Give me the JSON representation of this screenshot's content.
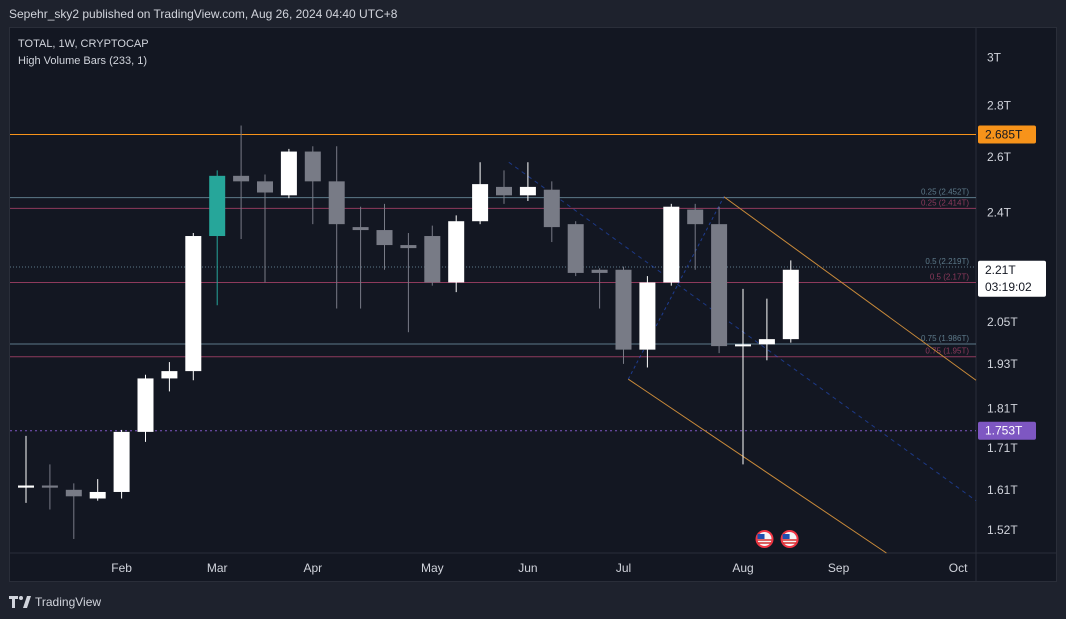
{
  "header": {
    "publisher_text": "Sepehr_sky2 published on TradingView.com, Aug 26, 2024 04:40 UTC+8"
  },
  "legend": {
    "symbol_line": "TOTAL, 1W, CRYPTOCAP",
    "indicator_line": "High Volume Bars (233, 1)"
  },
  "footer": {
    "brand": "TradingView"
  },
  "colors": {
    "background": "#131722",
    "bull_candle": "#ffffff",
    "bear_candle": "#787b86",
    "high_volume_candle": "#26a69a",
    "resistance_line": "#f7931a",
    "support_line": "#7e57c2",
    "fib_line": "#5d7a8a",
    "fib_line_alt": "#8e3a5c",
    "channel_line": "#c98a3a"
  },
  "price_badges": {
    "resistance": {
      "value": "2.685T",
      "price": 2.685,
      "color": "#f7931a"
    },
    "current": {
      "value": "2.21T",
      "countdown": "03:19:02",
      "price": 2.21
    },
    "support": {
      "value": "1.753T",
      "price": 1.753,
      "color": "#7e57c2"
    }
  },
  "fib_levels": [
    {
      "label": "0.25 (2.452T)",
      "price": 2.452,
      "color": "#5d7a8a"
    },
    {
      "label": "0.25 (2.414T)",
      "price": 2.414,
      "color": "#8e3a5c"
    },
    {
      "label": "0.5 (2.219T)",
      "price": 2.219,
      "color": "#5d7a8a"
    },
    {
      "label": "0.5 (2.17T)",
      "price": 2.17,
      "color": "#8e3a5c"
    },
    {
      "label": "0.75 (1.986T)",
      "price": 1.986,
      "color": "#5d7a8a"
    },
    {
      "label": "0.75 (1.95T)",
      "price": 1.95,
      "color": "#8e3a5c"
    }
  ],
  "chart_data": {
    "type": "candlestick",
    "title": "TOTAL, 1W, CRYPTOCAP",
    "log_scale": true,
    "y_range": [
      1.47,
      3.13
    ],
    "y_ticks": [
      {
        "label": "3T",
        "value": 3.0
      },
      {
        "label": "2.8T",
        "value": 2.8
      },
      {
        "label": "2.6T",
        "value": 2.6
      },
      {
        "label": "2.4T",
        "value": 2.4
      },
      {
        "label": "2.05T",
        "value": 2.05
      },
      {
        "label": "1.93T",
        "value": 1.93
      },
      {
        "label": "1.81T",
        "value": 1.81
      },
      {
        "label": "1.71T",
        "value": 1.71
      },
      {
        "label": "1.61T",
        "value": 1.61
      },
      {
        "label": "1.52T",
        "value": 1.52
      }
    ],
    "x_ticks": [
      {
        "label": "Feb",
        "index": 4
      },
      {
        "label": "Mar",
        "index": 8
      },
      {
        "label": "Apr",
        "index": 12
      },
      {
        "label": "May",
        "index": 17
      },
      {
        "label": "Jun",
        "index": 21
      },
      {
        "label": "Jul",
        "index": 25
      },
      {
        "label": "Aug",
        "index": 30
      },
      {
        "label": "Sep",
        "index": 34
      },
      {
        "label": "Oct",
        "index": 39
      }
    ],
    "candles": [
      {
        "o": 1.615,
        "h": 1.74,
        "l": 1.58,
        "c": 1.62
      },
      {
        "o": 1.62,
        "h": 1.67,
        "l": 1.565,
        "c": 1.615
      },
      {
        "o": 1.61,
        "h": 1.625,
        "l": 1.5,
        "c": 1.595
      },
      {
        "o": 1.59,
        "h": 1.635,
        "l": 1.585,
        "c": 1.605
      },
      {
        "o": 1.605,
        "h": 1.755,
        "l": 1.59,
        "c": 1.75
      },
      {
        "o": 1.75,
        "h": 1.9,
        "l": 1.725,
        "c": 1.89
      },
      {
        "o": 1.89,
        "h": 1.935,
        "l": 1.855,
        "c": 1.91
      },
      {
        "o": 1.91,
        "h": 2.33,
        "l": 1.885,
        "c": 2.32
      },
      {
        "o": 2.32,
        "h": 2.55,
        "l": 2.1,
        "c": 2.53,
        "hv": true
      },
      {
        "o": 2.53,
        "h": 2.72,
        "l": 2.31,
        "c": 2.51
      },
      {
        "o": 2.51,
        "h": 2.535,
        "l": 2.17,
        "c": 2.47
      },
      {
        "o": 2.46,
        "h": 2.63,
        "l": 2.45,
        "c": 2.62
      },
      {
        "o": 2.62,
        "h": 2.64,
        "l": 2.36,
        "c": 2.51
      },
      {
        "o": 2.51,
        "h": 2.64,
        "l": 2.09,
        "c": 2.36
      },
      {
        "o": 2.35,
        "h": 2.42,
        "l": 2.09,
        "c": 2.34
      },
      {
        "o": 2.34,
        "h": 2.43,
        "l": 2.21,
        "c": 2.29
      },
      {
        "o": 2.29,
        "h": 2.33,
        "l": 2.02,
        "c": 2.28
      },
      {
        "o": 2.32,
        "h": 2.355,
        "l": 2.16,
        "c": 2.17
      },
      {
        "o": 2.17,
        "h": 2.39,
        "l": 2.14,
        "c": 2.37
      },
      {
        "o": 2.37,
        "h": 2.58,
        "l": 2.36,
        "c": 2.5
      },
      {
        "o": 2.49,
        "h": 2.55,
        "l": 2.43,
        "c": 2.46
      },
      {
        "o": 2.46,
        "h": 2.58,
        "l": 2.44,
        "c": 2.49
      },
      {
        "o": 2.48,
        "h": 2.51,
        "l": 2.3,
        "c": 2.35
      },
      {
        "o": 2.36,
        "h": 2.37,
        "l": 2.19,
        "c": 2.2
      },
      {
        "o": 2.21,
        "h": 2.215,
        "l": 2.09,
        "c": 2.2
      },
      {
        "o": 2.21,
        "h": 2.22,
        "l": 1.93,
        "c": 1.97
      },
      {
        "o": 1.97,
        "h": 2.19,
        "l": 1.92,
        "c": 2.17
      },
      {
        "o": 2.17,
        "h": 2.43,
        "l": 2.16,
        "c": 2.42
      },
      {
        "o": 2.41,
        "h": 2.43,
        "l": 2.21,
        "c": 2.36
      },
      {
        "o": 2.36,
        "h": 2.42,
        "l": 1.96,
        "c": 1.98
      },
      {
        "o": 1.98,
        "h": 2.15,
        "l": 1.67,
        "c": 1.985
      },
      {
        "o": 1.985,
        "h": 2.12,
        "l": 1.94,
        "c": 2.0
      },
      {
        "o": 2.0,
        "h": 2.24,
        "l": 1.99,
        "c": 2.21
      }
    ],
    "volume_markers": [
      "US flag",
      "US flag"
    ]
  }
}
